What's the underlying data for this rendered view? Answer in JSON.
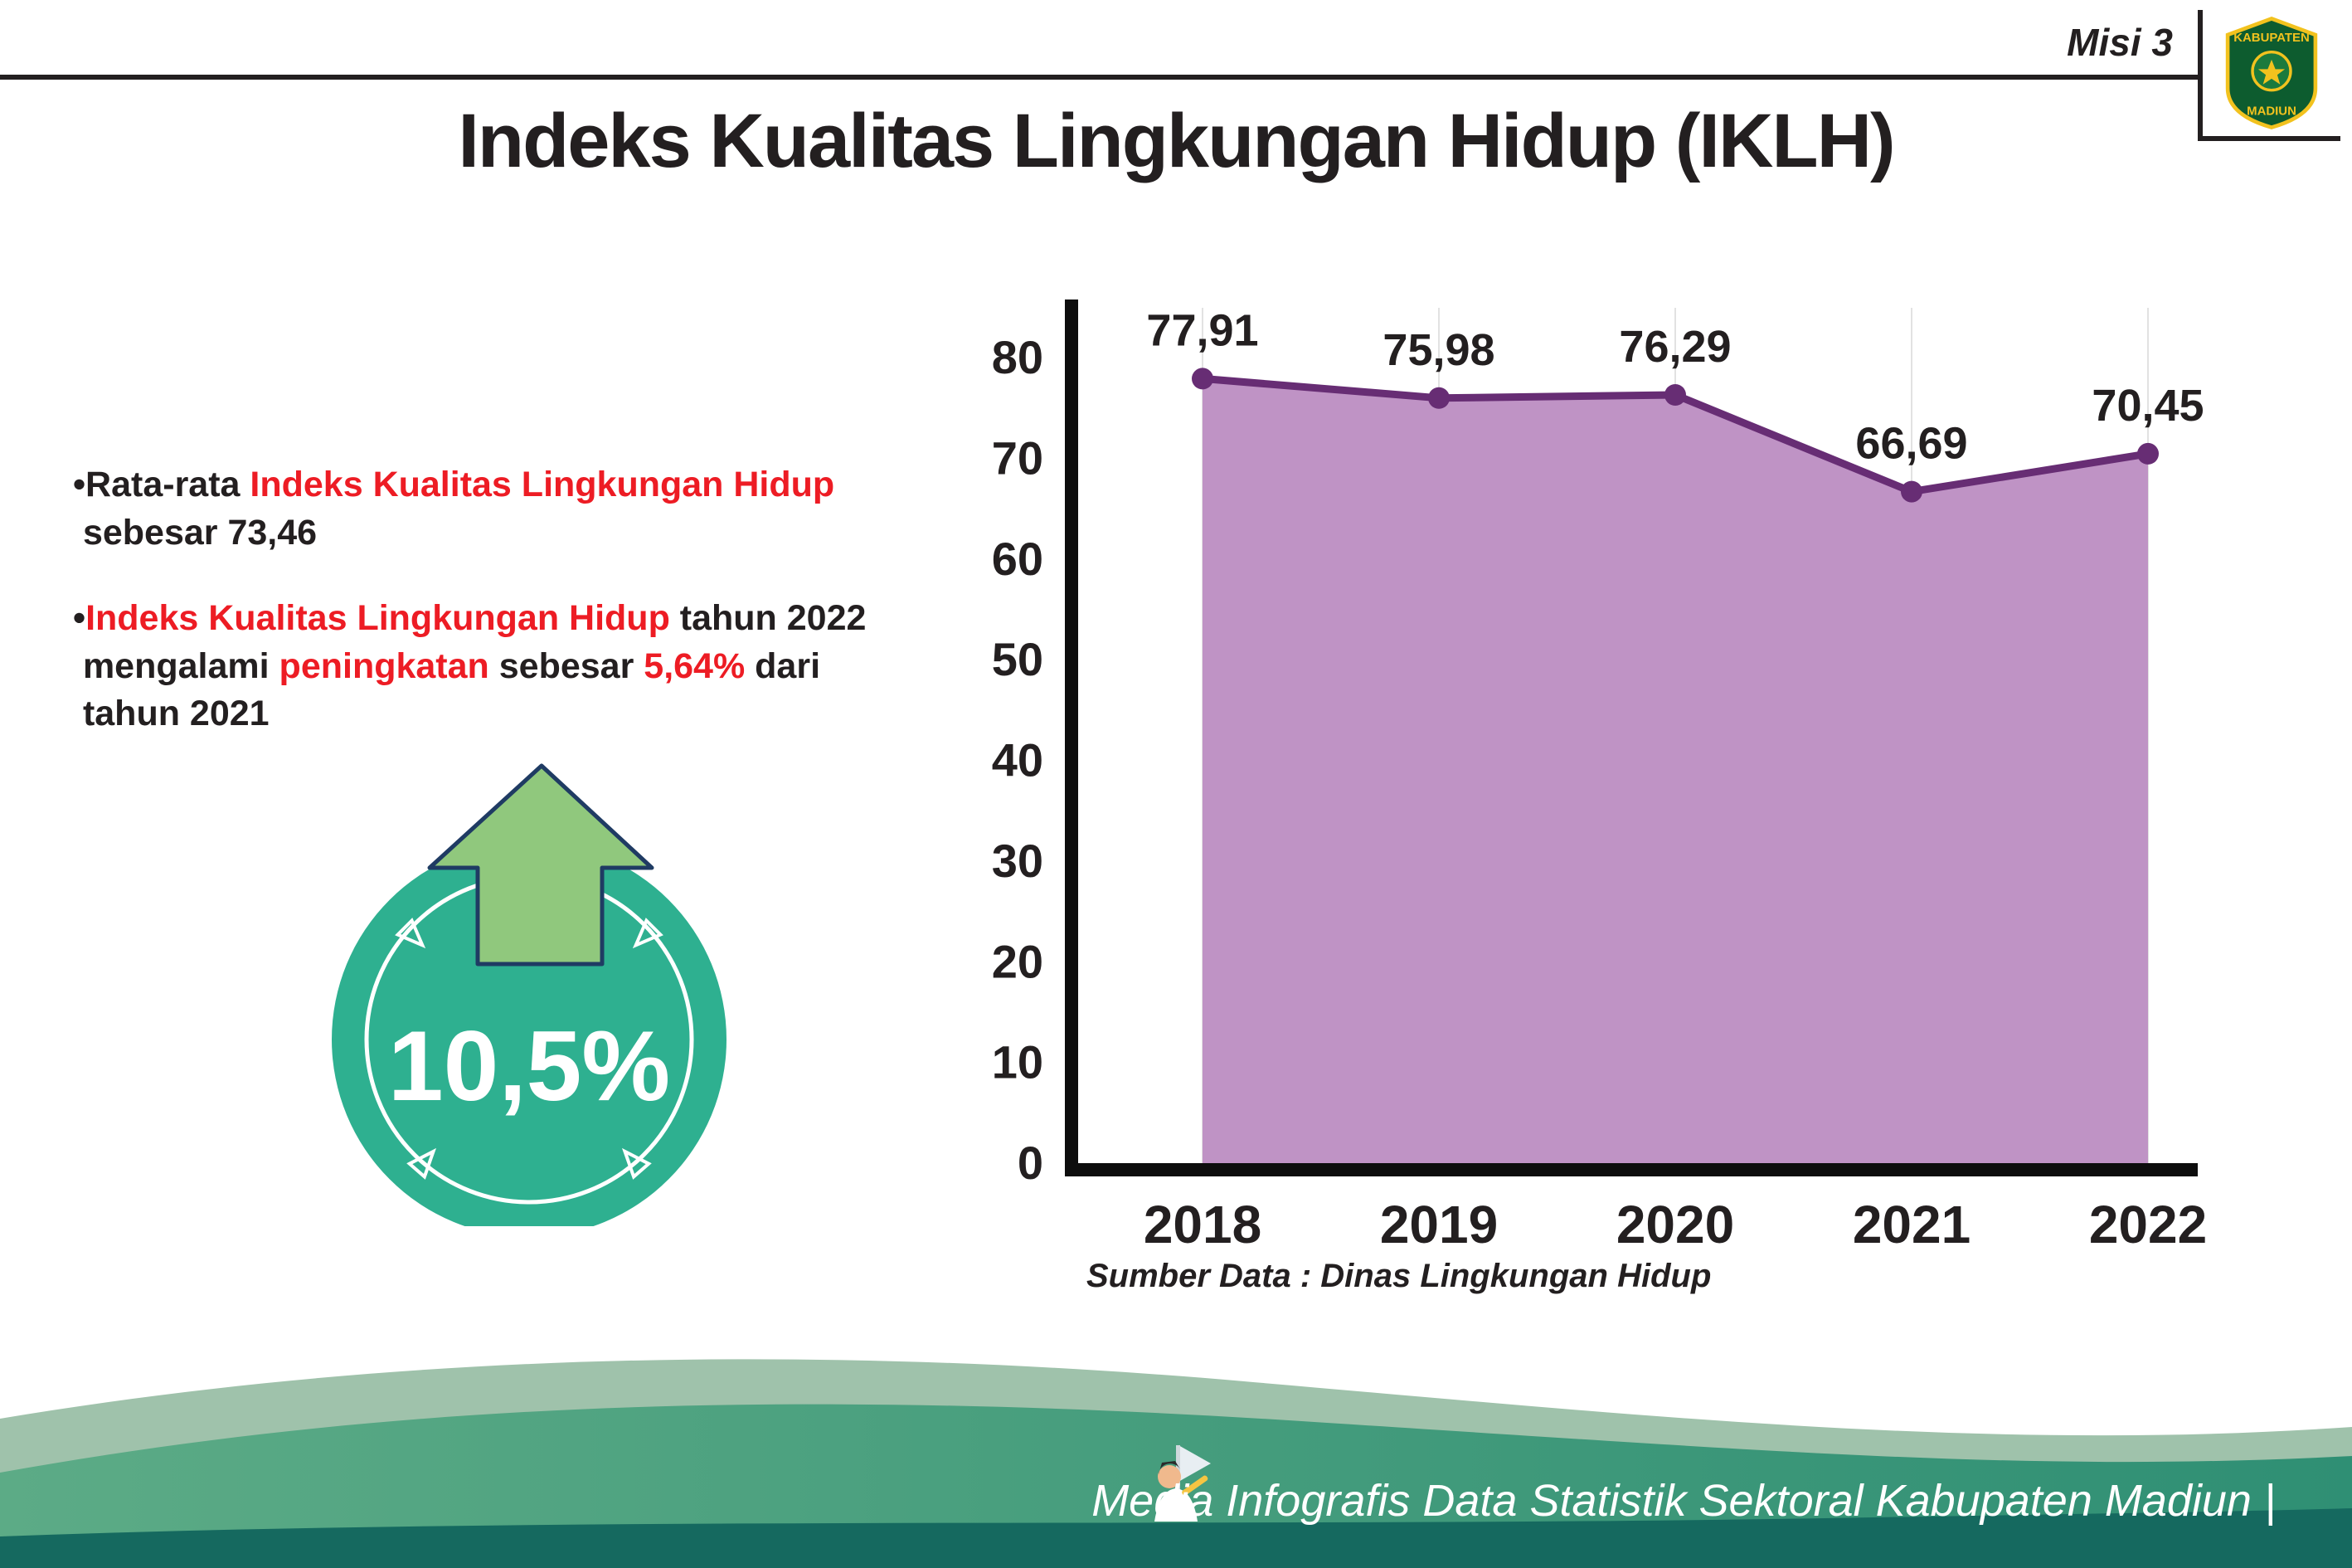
{
  "page": {
    "misi_label": "Misi 3",
    "title": "Indeks Kualitas Lingkungan Hidup (IKLH)"
  },
  "logo": {
    "top_text": "KABUPATEN",
    "bottom_text": "MADIUN"
  },
  "bullets": [
    {
      "segments": [
        {
          "text": "•Rata-rata ",
          "color": "#231f20"
        },
        {
          "text": "Indeks Kualitas Lingkungan Hidup",
          "color": "#ed1c24"
        },
        {
          "br": true
        },
        {
          "text": " sebesar 73,46",
          "color": "#231f20"
        }
      ]
    },
    {
      "segments": [
        {
          "text": "•",
          "color": "#231f20"
        },
        {
          "text": "Indeks Kualitas Lingkungan Hidup",
          "color": "#ed1c24"
        },
        {
          "text": " tahun 2022",
          "color": "#231f20"
        },
        {
          "br": true
        },
        {
          "text": " mengalami ",
          "color": "#231f20"
        },
        {
          "text": "peningkatan",
          "color": "#ed1c24"
        },
        {
          "text": " sebesar ",
          "color": "#231f20"
        },
        {
          "text": "5,64%",
          "color": "#ed1c24"
        },
        {
          "text": " dari",
          "color": "#231f20"
        },
        {
          "br": true
        },
        {
          "text": " tahun 2021",
          "color": "#231f20"
        }
      ]
    }
  ],
  "badge": {
    "value": "10,5%",
    "circle_color": "#2eb090",
    "arrow_color": "#90c87d"
  },
  "chart_data": {
    "type": "area",
    "categories": [
      "2018",
      "2019",
      "2020",
      "2021",
      "2022"
    ],
    "values": [
      77.91,
      75.98,
      76.29,
      66.69,
      70.45
    ],
    "point_labels": [
      "77,91",
      "75,98",
      "76,29",
      "66,69",
      "70,45"
    ],
    "title": "",
    "xlabel": "",
    "ylabel": "",
    "ylim": [
      0,
      80
    ],
    "ytick_step": 10,
    "grid": "vertical-light",
    "legend": "none",
    "fill_color": "#bf93c5",
    "line_color": "#672d74",
    "source_note": "Sumber Data : Dinas Lingkungan Hidup"
  },
  "footer": {
    "text": "Media Infografis Data Statistik Sektoral Kabupaten Madiun |"
  }
}
